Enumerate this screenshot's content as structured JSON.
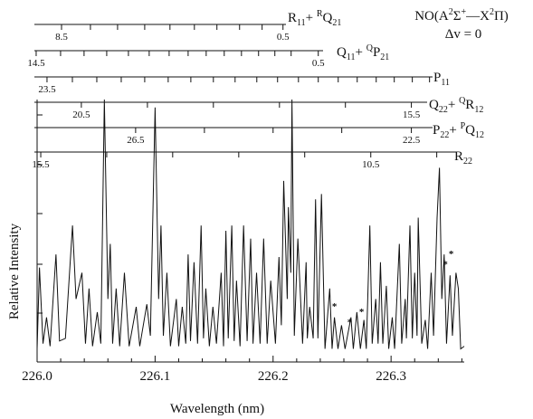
{
  "chart_data": {
    "type": "line",
    "title_parts": [
      {
        "text": "NO(A"
      },
      {
        "text": "2",
        "style": "sup"
      },
      {
        "text": "Σ"
      },
      {
        "text": "+",
        "style": "sup"
      },
      {
        "text": "—X"
      },
      {
        "text": "2",
        "style": "sup"
      },
      {
        "text": "Π)"
      }
    ],
    "subtitle": "Δv = 0",
    "x_label": "Wavelength (nm)",
    "y_label": "Relative Intensity",
    "xlim": [
      226.0,
      226.362
    ],
    "ylim": [
      0,
      1
    ],
    "xticks": [
      {
        "value": 226.0,
        "label": "226.0"
      },
      226.1,
      226.2,
      226.3
    ],
    "x_minor_ticks": [
      226.02,
      226.04,
      226.06,
      226.08,
      226.12,
      226.14,
      226.16,
      226.18,
      226.22,
      226.24,
      226.26,
      226.28,
      226.32,
      226.34,
      226.36
    ],
    "color": "#111111",
    "x": [
      226.0,
      226.002,
      226.005,
      226.008,
      226.011,
      226.016,
      226.019,
      226.024,
      226.03,
      226.033,
      226.038,
      226.041,
      226.044,
      226.047,
      226.051,
      226.054,
      226.057,
      226.06,
      226.062,
      226.064,
      226.067,
      226.07,
      226.074,
      226.078,
      226.084,
      226.087,
      226.093,
      226.096,
      226.1,
      226.103,
      226.105,
      226.107,
      226.11,
      226.113,
      226.118,
      226.12,
      226.123,
      226.126,
      226.128,
      226.13,
      226.133,
      226.136,
      226.139,
      226.141,
      226.143,
      226.146,
      226.149,
      226.152,
      226.156,
      226.158,
      226.16,
      226.162,
      226.165,
      226.167,
      226.169,
      226.172,
      226.175,
      226.178,
      226.181,
      226.183,
      226.186,
      226.189,
      226.192,
      226.195,
      226.198,
      226.202,
      226.205,
      226.207,
      226.209,
      226.212,
      226.213,
      226.215,
      226.216,
      226.218,
      226.221,
      226.225,
      226.228,
      226.229,
      226.231,
      226.234,
      226.236,
      226.238,
      226.241,
      226.244,
      226.248,
      226.25,
      226.252,
      226.255,
      226.258,
      226.261,
      226.266,
      226.268,
      226.271,
      226.274,
      226.277,
      226.279,
      226.282,
      226.284,
      226.287,
      226.289,
      226.291,
      226.293,
      226.296,
      226.298,
      226.301,
      226.303,
      226.307,
      226.309,
      226.312,
      226.313,
      226.316,
      226.318,
      226.32,
      226.322,
      226.323,
      226.326,
      226.329,
      226.331,
      226.334,
      226.336,
      226.339,
      226.341,
      226.343,
      226.345,
      226.347,
      226.35,
      226.352,
      226.355,
      226.357,
      226.359,
      226.362
    ],
    "values": [
      0.05,
      0.36,
      0.07,
      0.17,
      0.06,
      0.41,
      0.08,
      0.09,
      0.52,
      0.24,
      0.34,
      0.07,
      0.28,
      0.06,
      0.19,
      0.07,
      1.0,
      0.24,
      0.45,
      0.07,
      0.28,
      0.06,
      0.34,
      0.06,
      0.21,
      0.06,
      0.22,
      0.1,
      0.97,
      0.24,
      0.52,
      0.1,
      0.34,
      0.06,
      0.24,
      0.06,
      0.21,
      0.07,
      0.41,
      0.08,
      0.38,
      0.07,
      0.52,
      0.09,
      0.28,
      0.06,
      0.21,
      0.07,
      0.34,
      0.06,
      0.5,
      0.09,
      0.52,
      0.08,
      0.31,
      0.06,
      0.52,
      0.08,
      0.47,
      0.07,
      0.34,
      0.07,
      0.47,
      0.07,
      0.31,
      0.07,
      0.4,
      0.14,
      0.69,
      0.24,
      0.59,
      0.34,
      1.0,
      0.1,
      0.47,
      0.07,
      0.38,
      0.09,
      0.21,
      0.09,
      0.62,
      0.09,
      0.64,
      0.05,
      0.28,
      0.05,
      0.17,
      0.05,
      0.14,
      0.05,
      0.17,
      0.05,
      0.19,
      0.05,
      0.16,
      0.05,
      0.52,
      0.07,
      0.24,
      0.07,
      0.38,
      0.07,
      0.29,
      0.05,
      0.17,
      0.05,
      0.45,
      0.07,
      0.24,
      0.09,
      0.52,
      0.09,
      0.34,
      0.1,
      0.55,
      0.07,
      0.16,
      0.05,
      0.34,
      0.1,
      0.55,
      0.74,
      0.24,
      0.41,
      0.07,
      0.33,
      0.1,
      0.34,
      0.28,
      0.05,
      0.06
    ],
    "annotations": [
      {
        "text": "*",
        "x": 226.252,
        "y": 0.2
      },
      {
        "text": "*",
        "x": 226.265,
        "y": 0.14
      },
      {
        "text": "*",
        "x": 226.275,
        "y": 0.18
      },
      {
        "text": "*",
        "x": 226.346,
        "y": 0.36
      },
      {
        "text": "*",
        "x": 226.351,
        "y": 0.4
      }
    ],
    "branches": [
      {
        "label_parts": [
          {
            "text": "R"
          },
          {
            "text": "11",
            "style": "sub"
          },
          {
            "text": "+ "
          },
          {
            "text": "R",
            "style": "sup"
          },
          {
            "text": "Q"
          },
          {
            "text": "21",
            "style": "sub"
          }
        ],
        "ticks": [
          226.0207,
          226.0452,
          226.0682,
          226.0912,
          226.1126,
          226.1333,
          226.1524,
          226.1716,
          226.1907,
          226.2084
        ],
        "tick_labels": [
          {
            "value": 226.0207,
            "label": "8.5"
          },
          {
            "value": 226.2084,
            "label": "0.5"
          }
        ]
      },
      {
        "label_parts": [
          {
            "text": "Q"
          },
          {
            "text": "11",
            "style": "sub"
          },
          {
            "text": "+ "
          },
          {
            "text": "Q",
            "style": "sup"
          },
          {
            "text": "P"
          },
          {
            "text": "21",
            "style": "sub"
          }
        ],
        "ticks": [
          225.9992,
          226.0199,
          226.0398,
          226.059,
          226.0774,
          226.095,
          226.1119,
          226.128,
          226.1433,
          226.1586,
          226.1732,
          226.1877,
          226.2015,
          226.2153,
          226.2383
        ],
        "tick_labels": [
          {
            "value": 225.9992,
            "label": "14.5"
          },
          {
            "value": 226.2383,
            "label": "0.5"
          }
        ]
      },
      {
        "label_parts": [
          {
            "text": "P"
          },
          {
            "text": "11",
            "style": "sub"
          }
        ],
        "ticks": [
          226.0084,
          226.0299,
          226.0506,
          226.0713,
          226.0912,
          226.1111,
          226.1303,
          226.1494,
          226.1678,
          226.1862,
          226.2038,
          226.2215,
          226.2383,
          226.2552,
          226.2713,
          226.2874,
          226.3027,
          226.318,
          226.3326
        ],
        "tick_labels": [
          {
            "value": 226.0084,
            "label": "23.5"
          }
        ]
      },
      {
        "label_parts": [
          {
            "text": "Q"
          },
          {
            "text": "22",
            "style": "sub"
          },
          {
            "text": "+ "
          },
          {
            "text": "Q",
            "style": "sup"
          },
          {
            "text": "R"
          },
          {
            "text": "12",
            "style": "sub"
          }
        ],
        "ticks": [
          226.0375,
          226.0935,
          226.1494,
          226.2054,
          226.2613,
          226.3172
        ],
        "tick_labels": [
          {
            "value": 226.0375,
            "label": "20.5"
          },
          {
            "value": 226.3172,
            "label": "15.5"
          }
        ]
      },
      {
        "label_parts": [
          {
            "text": "P"
          },
          {
            "text": "22",
            "style": "sub"
          },
          {
            "text": "+ "
          },
          {
            "text": "P",
            "style": "sup"
          },
          {
            "text": "Q"
          },
          {
            "text": "12",
            "style": "sub"
          }
        ],
        "ticks": [
          226.0835,
          226.1418,
          226.2,
          226.2582,
          226.3172
        ],
        "tick_labels": [
          {
            "value": 226.0835,
            "label": "26.5"
          },
          {
            "value": 226.3172,
            "label": "22.5"
          }
        ]
      },
      {
        "label_parts": [
          {
            "text": "R"
          },
          {
            "text": "22",
            "style": "sub"
          }
        ],
        "ticks": [
          226.0031,
          226.059,
          226.1149,
          226.1709,
          226.2268,
          226.2828,
          226.3387
        ],
        "tick_labels": [
          {
            "value": 226.0031,
            "label": "15.5"
          },
          {
            "value": 226.2828,
            "label": "10.5"
          }
        ]
      }
    ]
  }
}
